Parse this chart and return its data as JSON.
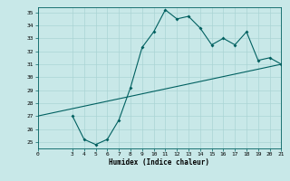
{
  "xlabel": "Humidex (Indice chaleur)",
  "ylabel": "",
  "bg_color": "#c8e8e8",
  "line_color": "#006060",
  "grid_color": "#aad4d4",
  "xlim": [
    0,
    21
  ],
  "ylim": [
    25,
    35
  ],
  "xticks": [
    0,
    3,
    4,
    5,
    6,
    7,
    8,
    9,
    10,
    11,
    12,
    13,
    14,
    15,
    16,
    17,
    18,
    19,
    20,
    21
  ],
  "yticks": [
    25,
    26,
    27,
    28,
    29,
    30,
    31,
    32,
    33,
    34,
    35
  ],
  "curve_x": [
    3,
    4,
    5,
    6,
    7,
    8,
    9,
    10,
    11,
    12,
    13,
    14,
    15,
    16,
    17,
    18,
    19,
    20,
    21
  ],
  "curve_y": [
    27.0,
    25.2,
    24.8,
    25.2,
    26.7,
    29.2,
    32.3,
    33.5,
    35.2,
    34.5,
    34.7,
    33.8,
    32.5,
    33.0,
    32.5,
    33.5,
    31.3,
    31.5,
    31.0
  ],
  "line_x": [
    0,
    21
  ],
  "line_y": [
    27.0,
    31.0
  ]
}
